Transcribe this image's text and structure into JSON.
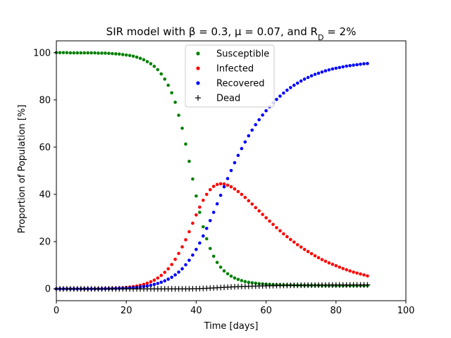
{
  "chart_data": {
    "type": "scatter",
    "title": "SIR model with β = 0.3, μ = 0.07, and R",
    "title_sub": "D",
    "title_end": " = 2%",
    "xlabel": "Time [days]",
    "ylabel": "Proportion of Population [%]",
    "xlim": [
      0,
      100
    ],
    "ylim": [
      -5,
      105
    ],
    "xticks": [
      0,
      20,
      40,
      60,
      80,
      100
    ],
    "yticks": [
      0,
      20,
      40,
      60,
      80,
      100
    ],
    "grid": false,
    "legend_position": "top-center",
    "x": [
      0,
      1,
      2,
      3,
      4,
      5,
      6,
      7,
      8,
      9,
      10,
      11,
      12,
      13,
      14,
      15,
      16,
      17,
      18,
      19,
      20,
      21,
      22,
      23,
      24,
      25,
      26,
      27,
      28,
      29,
      30,
      31,
      32,
      33,
      34,
      35,
      36,
      37,
      38,
      39,
      40,
      41,
      42,
      43,
      44,
      45,
      46,
      47,
      48,
      49,
      50,
      51,
      52,
      53,
      54,
      55,
      56,
      57,
      58,
      59,
      60,
      61,
      62,
      63,
      64,
      65,
      66,
      67,
      68,
      69,
      70,
      71,
      72,
      73,
      74,
      75,
      76,
      77,
      78,
      79,
      80,
      81,
      82,
      83,
      84,
      85,
      86,
      87,
      88,
      89
    ],
    "series": [
      {
        "name": "Susceptible",
        "color": "#008000",
        "marker": "dot",
        "values": [
          100,
          100,
          100,
          100,
          99.9,
          99.9,
          99.9,
          99.9,
          99.9,
          99.9,
          99.9,
          99.9,
          99.8,
          99.8,
          99.8,
          99.7,
          99.6,
          99.5,
          99.4,
          99.2,
          99.0,
          98.8,
          98.5,
          98.1,
          97.6,
          97.0,
          96.2,
          95.3,
          94.2,
          92.8,
          91.0,
          88.8,
          86.2,
          83.0,
          79.0,
          73.5,
          68.0,
          61.3,
          54.0,
          46.5,
          39.3,
          32.4,
          26.3,
          21.2,
          17.1,
          13.8,
          11.2,
          9.2,
          7.6,
          6.4,
          5.4,
          4.6,
          4.0,
          3.5,
          3.1,
          2.8,
          2.6,
          2.4,
          2.2,
          2.1,
          2.0,
          1.9,
          1.8,
          1.75,
          1.7,
          1.65,
          1.6,
          1.58,
          1.55,
          1.52,
          1.5,
          1.48,
          1.46,
          1.45,
          1.44,
          1.43,
          1.42,
          1.41,
          1.4,
          1.4,
          1.39,
          1.39,
          1.38,
          1.38,
          1.37,
          1.37,
          1.37,
          1.36,
          1.36,
          1.36
        ]
      },
      {
        "name": "Infected",
        "color": "#ff0000",
        "marker": "dot",
        "values": [
          0,
          0,
          0,
          0,
          0,
          0,
          0,
          0,
          0,
          0,
          0,
          0,
          0.05,
          0.08,
          0.1,
          0.15,
          0.2,
          0.28,
          0.36,
          0.48,
          0.6,
          0.75,
          0.95,
          1.2,
          1.5,
          1.9,
          2.4,
          3.0,
          3.7,
          4.6,
          5.7,
          7.0,
          8.5,
          10.3,
          12.5,
          15.0,
          17.8,
          20.8,
          24.2,
          27.8,
          31.3,
          34.6,
          37.5,
          40.0,
          42.0,
          43.4,
          44.2,
          44.5,
          44.4,
          43.9,
          43.2,
          42.3,
          41.2,
          40.0,
          38.7,
          37.3,
          35.9,
          34.4,
          33.0,
          31.5,
          30.1,
          28.7,
          27.3,
          25.9,
          24.6,
          23.3,
          22.1,
          20.9,
          19.8,
          18.7,
          17.7,
          16.7,
          15.8,
          14.9,
          14.0,
          13.2,
          12.4,
          11.7,
          11.0,
          10.4,
          9.8,
          9.2,
          8.6,
          8.1,
          7.6,
          7.1,
          6.7,
          6.3,
          5.9,
          5.5
        ]
      },
      {
        "name": "Recovered",
        "color": "#0000ff",
        "marker": "dot",
        "values": [
          0,
          0,
          0,
          0,
          0,
          0,
          0,
          0,
          0,
          0,
          0,
          0,
          0,
          0,
          0.05,
          0.08,
          0.1,
          0.15,
          0.2,
          0.25,
          0.3,
          0.4,
          0.5,
          0.6,
          0.8,
          1.0,
          1.2,
          1.5,
          1.9,
          2.3,
          2.8,
          3.4,
          4.1,
          4.9,
          5.9,
          7.1,
          8.5,
          10.2,
          12.1,
          14.3,
          16.7,
          19.4,
          22.4,
          25.6,
          28.9,
          32.4,
          36.0,
          39.6,
          43.2,
          46.7,
          50.1,
          53.4,
          56.5,
          59.4,
          62.2,
          64.8,
          67.2,
          69.5,
          71.6,
          73.6,
          75.4,
          77.1,
          78.7,
          80.2,
          81.6,
          82.9,
          84.1,
          85.2,
          86.2,
          87.1,
          88.0,
          88.8,
          89.5,
          90.2,
          90.8,
          91.3,
          91.8,
          92.3,
          92.7,
          93.1,
          93.4,
          93.7,
          94.0,
          94.3,
          94.5,
          94.7,
          94.9,
          95.1,
          95.3,
          95.4
        ]
      },
      {
        "name": "Dead",
        "color": "#000000",
        "marker": "plus",
        "values": [
          0,
          0,
          0,
          0,
          0,
          0,
          0,
          0,
          0,
          0,
          0,
          0,
          0,
          0,
          0,
          0,
          0,
          0,
          0,
          0,
          0,
          0,
          0,
          0,
          0,
          0,
          0,
          0,
          0,
          0,
          0,
          0,
          0,
          0,
          0,
          0,
          0,
          0,
          0,
          0.05,
          0.08,
          0.12,
          0.18,
          0.25,
          0.32,
          0.4,
          0.48,
          0.56,
          0.64,
          0.72,
          0.8,
          0.87,
          0.93,
          0.99,
          1.04,
          1.09,
          1.13,
          1.17,
          1.21,
          1.25,
          1.28,
          1.31,
          1.34,
          1.37,
          1.4,
          1.42,
          1.44,
          1.46,
          1.48,
          1.5,
          1.52,
          1.53,
          1.55,
          1.56,
          1.57,
          1.58,
          1.59,
          1.6,
          1.61,
          1.62,
          1.63,
          1.64,
          1.65,
          1.65,
          1.66,
          1.67,
          1.67,
          1.68,
          1.68,
          1.69
        ]
      }
    ]
  }
}
